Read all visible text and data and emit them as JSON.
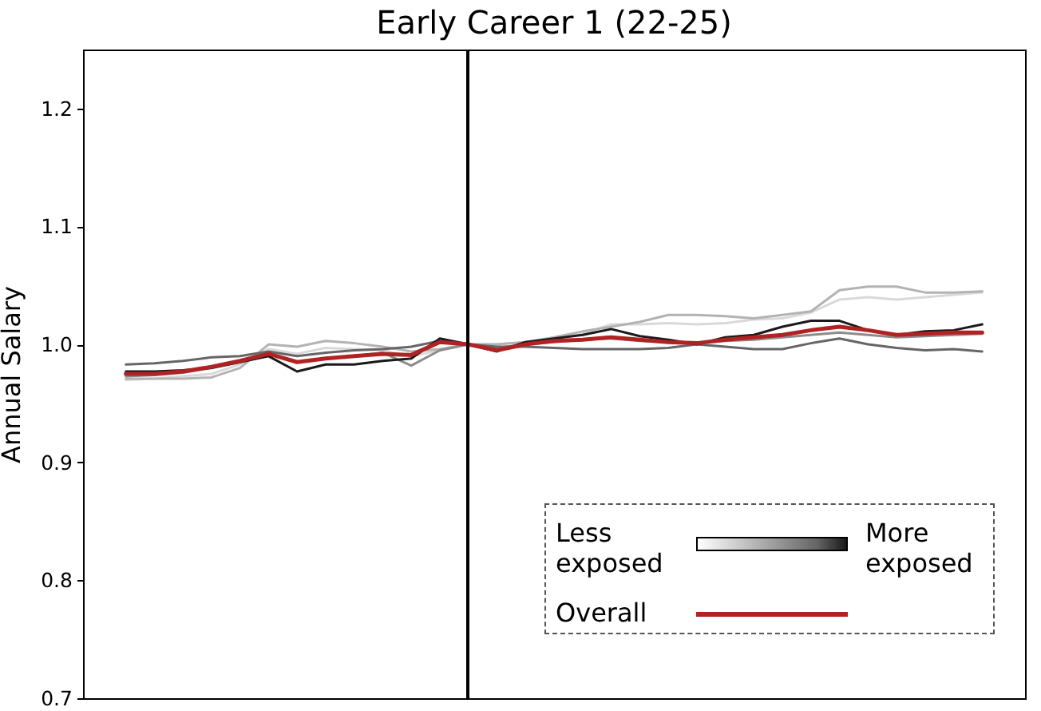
{
  "chart_data": {
    "type": "line",
    "title": "Early Career 1 (22-25)",
    "ylabel": "Annual Salary",
    "categories": [
      null,
      null,
      null,
      null,
      null,
      null,
      null,
      null,
      null,
      null,
      null,
      null,
      null,
      null,
      null,
      null,
      null,
      null,
      null,
      null,
      null,
      null,
      null,
      null,
      null,
      null,
      null,
      null,
      null,
      null,
      null
    ],
    "series": [
      {
        "color": "#d9d9d9",
        "values": [
          0.97,
          0.971,
          0.973,
          0.975,
          0.983,
          0.996,
          0.992,
          0.997,
          0.996,
          0.995,
          0.99,
          0.995,
          1.0,
          1.0,
          1.002,
          1.005,
          1.009,
          1.017,
          1.017,
          1.018,
          1.017,
          1.018,
          1.021,
          1.022,
          1.027,
          1.038,
          1.04,
          1.038,
          1.04,
          1.042,
          1.044
        ]
      },
      {
        "color": "#b3b3b3",
        "values": [
          0.971,
          0.971,
          0.971,
          0.972,
          0.98,
          1.0,
          0.998,
          1.003,
          1.001,
          0.998,
          0.994,
          0.996,
          1.0,
          1.0,
          1.002,
          1.006,
          1.011,
          1.015,
          1.019,
          1.025,
          1.025,
          1.024,
          1.022,
          1.025,
          1.028,
          1.046,
          1.049,
          1.049,
          1.044,
          1.044,
          1.045
        ]
      },
      {
        "color": "#8c8c8c",
        "values": [
          0.973,
          0.974,
          0.976,
          0.98,
          0.985,
          0.992,
          0.985,
          0.988,
          0.99,
          0.993,
          0.982,
          0.995,
          1.0,
          0.997,
          1.0,
          1.002,
          1.004,
          1.005,
          1.003,
          1.002,
          1.001,
          1.003,
          1.004,
          1.006,
          1.008,
          1.01,
          1.008,
          1.006,
          1.007,
          1.008,
          1.009
        ]
      },
      {
        "color": "#666666",
        "values": [
          0.983,
          0.984,
          0.986,
          0.989,
          0.99,
          0.994,
          0.99,
          0.993,
          0.995,
          0.996,
          0.998,
          1.003,
          1.0,
          0.998,
          0.998,
          0.997,
          0.996,
          0.996,
          0.996,
          0.997,
          1.0,
          0.998,
          0.996,
          0.996,
          1.001,
          1.005,
          1.0,
          0.997,
          0.995,
          0.996,
          0.994
        ]
      },
      {
        "color": "#1a1a1a",
        "values": [
          0.977,
          0.977,
          0.978,
          0.98,
          0.985,
          0.99,
          0.977,
          0.983,
          0.983,
          0.986,
          0.988,
          1.005,
          1.0,
          0.994,
          1.002,
          1.005,
          1.008,
          1.013,
          1.007,
          1.004,
          1.0,
          1.006,
          1.008,
          1.015,
          1.02,
          1.02,
          1.012,
          1.008,
          1.011,
          1.012,
          1.017
        ]
      },
      {
        "name": "Overall",
        "color": "#b22222",
        "values": [
          0.975,
          0.975,
          0.977,
          0.981,
          0.986,
          0.992,
          0.985,
          0.988,
          0.99,
          0.992,
          0.991,
          1.002,
          1.0,
          0.995,
          1.0,
          1.003,
          1.004,
          1.006,
          1.004,
          1.002,
          1.001,
          1.004,
          1.006,
          1.008,
          1.012,
          1.015,
          1.012,
          1.008,
          1.009,
          1.01,
          1.01
        ]
      }
    ],
    "ylim": [
      0.7,
      1.25
    ],
    "yticks": [
      0.7,
      0.8,
      0.9,
      {
        "value": 1,
        "label": "1.0"
      },
      1.1,
      1.2
    ],
    "annotations": [
      "Less exposed",
      "More exposed"
    ],
    "legend": "bottom right",
    "tick_labels": "y"
  }
}
